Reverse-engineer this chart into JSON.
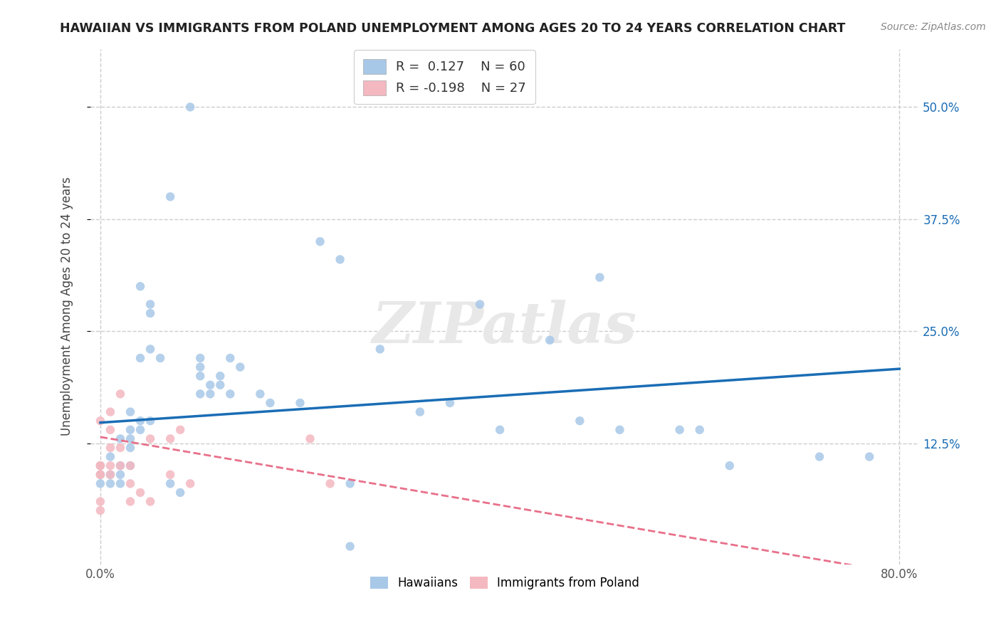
{
  "title": "HAWAIIAN VS IMMIGRANTS FROM POLAND UNEMPLOYMENT AMONG AGES 20 TO 24 YEARS CORRELATION CHART",
  "source_text": "Source: ZipAtlas.com",
  "ylabel": "Unemployment Among Ages 20 to 24 years",
  "xlim": [
    -0.01,
    0.82
  ],
  "ylim": [
    -0.01,
    0.565
  ],
  "ytick_positions": [
    0.125,
    0.25,
    0.375,
    0.5
  ],
  "grid_color": "#cccccc",
  "background_color": "#ffffff",
  "watermark": "ZIPatlas",
  "hawaiian_color": "#a8c8e8",
  "poland_color": "#f4b8c0",
  "hawaiian_line_color": "#1a6db5",
  "poland_line_color": "#e8708a",
  "hawaiian_scatter": [
    [
      0.0,
      0.1
    ],
    [
      0.0,
      0.09
    ],
    [
      0.0,
      0.08
    ],
    [
      0.01,
      0.11
    ],
    [
      0.01,
      0.09
    ],
    [
      0.01,
      0.08
    ],
    [
      0.02,
      0.1
    ],
    [
      0.02,
      0.09
    ],
    [
      0.02,
      0.13
    ],
    [
      0.02,
      0.08
    ],
    [
      0.03,
      0.16
    ],
    [
      0.03,
      0.13
    ],
    [
      0.03,
      0.12
    ],
    [
      0.03,
      0.14
    ],
    [
      0.03,
      0.1
    ],
    [
      0.04,
      0.15
    ],
    [
      0.04,
      0.22
    ],
    [
      0.04,
      0.14
    ],
    [
      0.04,
      0.3
    ],
    [
      0.05,
      0.27
    ],
    [
      0.05,
      0.28
    ],
    [
      0.05,
      0.15
    ],
    [
      0.05,
      0.23
    ],
    [
      0.06,
      0.22
    ],
    [
      0.07,
      0.4
    ],
    [
      0.07,
      0.08
    ],
    [
      0.08,
      0.07
    ],
    [
      0.09,
      0.5
    ],
    [
      0.1,
      0.22
    ],
    [
      0.1,
      0.18
    ],
    [
      0.1,
      0.2
    ],
    [
      0.1,
      0.21
    ],
    [
      0.11,
      0.19
    ],
    [
      0.11,
      0.18
    ],
    [
      0.12,
      0.2
    ],
    [
      0.12,
      0.19
    ],
    [
      0.13,
      0.22
    ],
    [
      0.13,
      0.18
    ],
    [
      0.14,
      0.21
    ],
    [
      0.16,
      0.18
    ],
    [
      0.17,
      0.17
    ],
    [
      0.2,
      0.17
    ],
    [
      0.22,
      0.35
    ],
    [
      0.24,
      0.33
    ],
    [
      0.25,
      0.08
    ],
    [
      0.25,
      0.01
    ],
    [
      0.28,
      0.23
    ],
    [
      0.32,
      0.16
    ],
    [
      0.35,
      0.17
    ],
    [
      0.38,
      0.28
    ],
    [
      0.4,
      0.14
    ],
    [
      0.45,
      0.24
    ],
    [
      0.48,
      0.15
    ],
    [
      0.5,
      0.31
    ],
    [
      0.52,
      0.14
    ],
    [
      0.58,
      0.14
    ],
    [
      0.6,
      0.14
    ],
    [
      0.63,
      0.1
    ],
    [
      0.72,
      0.11
    ],
    [
      0.77,
      0.11
    ]
  ],
  "poland_scatter": [
    [
      0.0,
      0.1
    ],
    [
      0.0,
      0.1
    ],
    [
      0.0,
      0.09
    ],
    [
      0.0,
      0.15
    ],
    [
      0.0,
      0.09
    ],
    [
      0.0,
      0.06
    ],
    [
      0.0,
      0.05
    ],
    [
      0.01,
      0.14
    ],
    [
      0.01,
      0.16
    ],
    [
      0.01,
      0.12
    ],
    [
      0.01,
      0.1
    ],
    [
      0.01,
      0.09
    ],
    [
      0.02,
      0.12
    ],
    [
      0.02,
      0.18
    ],
    [
      0.02,
      0.1
    ],
    [
      0.03,
      0.1
    ],
    [
      0.03,
      0.08
    ],
    [
      0.03,
      0.06
    ],
    [
      0.04,
      0.07
    ],
    [
      0.05,
      0.13
    ],
    [
      0.05,
      0.06
    ],
    [
      0.07,
      0.13
    ],
    [
      0.07,
      0.09
    ],
    [
      0.08,
      0.14
    ],
    [
      0.09,
      0.08
    ],
    [
      0.21,
      0.13
    ],
    [
      0.23,
      0.08
    ]
  ],
  "hawaiian_trend_x": [
    0.0,
    0.8
  ],
  "hawaiian_trend_y": [
    0.148,
    0.208
  ],
  "poland_trend_x": [
    0.0,
    0.8
  ],
  "poland_trend_y": [
    0.132,
    -0.02
  ]
}
